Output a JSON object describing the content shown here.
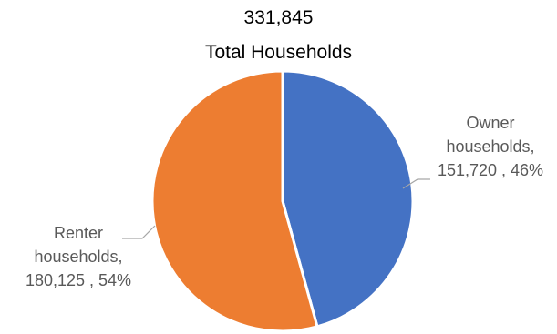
{
  "chart_data": {
    "type": "pie",
    "title_total": "331,845",
    "title_label": "Total Households",
    "slices": [
      {
        "name": "Owner households",
        "value": 151720,
        "percent": 46,
        "color": "#4472C4",
        "label_lines": [
          "Owner",
          "households,",
          "151,720 , 46%"
        ]
      },
      {
        "name": "Renter households",
        "value": 180125,
        "percent": 54,
        "color": "#ED7D31",
        "label_lines": [
          "Renter",
          "households,",
          "180,125 , 54%"
        ]
      }
    ],
    "legend": "none"
  }
}
